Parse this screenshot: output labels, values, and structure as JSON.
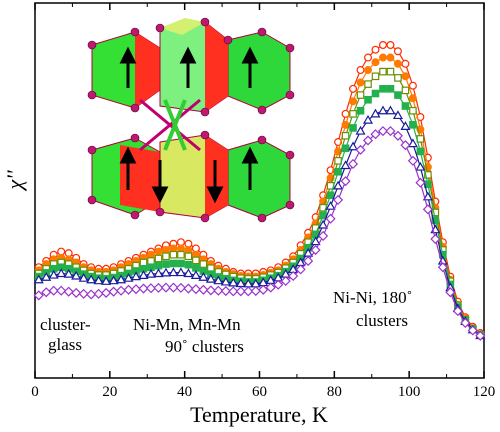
{
  "chart_data": {
    "type": "line",
    "xlabel": "Temperature,  K",
    "ylabel": "χ''",
    "xlim": [
      0,
      120
    ],
    "ylim": [
      0,
      1
    ],
    "x_ticks": [
      "0",
      "20",
      "40",
      "60",
      "80",
      "100",
      "120"
    ],
    "y_ticks_labeled": false,
    "grid": false,
    "legend": "none",
    "annotations": [
      {
        "lines": [
          "cluster-",
          "glass"
        ],
        "at": [
          1,
          0.06
        ]
      },
      {
        "lines": [
          "Ni-Mn, Mn-Mn",
          "90˚ clusters"
        ],
        "at": [
          40,
          0.06
        ]
      },
      {
        "lines": [
          "Ni-Ni, 180˚",
          "clusters"
        ],
        "at": [
          95,
          0.1
        ]
      }
    ],
    "inset": "Crystal structure with octahedral clusters and spin arrows",
    "series": [
      {
        "marker": "open-circle",
        "color": "#ff2a00",
        "x": [
          1,
          3,
          5,
          7,
          9,
          11,
          13,
          15,
          17,
          19,
          21,
          23,
          25,
          27,
          29,
          31,
          33,
          35,
          37,
          39,
          41,
          43,
          45,
          47,
          49,
          51,
          53,
          55,
          57,
          59,
          61,
          63,
          65,
          67,
          69,
          71,
          73,
          75,
          77,
          79,
          81,
          83,
          85,
          87,
          89,
          91,
          93,
          95,
          97,
          99,
          101,
          103,
          105,
          107,
          109,
          111,
          113,
          115,
          117,
          119
        ],
        "y": [
          0.29,
          0.31,
          0.33,
          0.34,
          0.335,
          0.32,
          0.3,
          0.29,
          0.285,
          0.285,
          0.29,
          0.3,
          0.31,
          0.32,
          0.33,
          0.34,
          0.35,
          0.36,
          0.365,
          0.37,
          0.365,
          0.35,
          0.33,
          0.31,
          0.295,
          0.285,
          0.275,
          0.27,
          0.27,
          0.27,
          0.275,
          0.28,
          0.29,
          0.305,
          0.325,
          0.36,
          0.4,
          0.45,
          0.52,
          0.6,
          0.69,
          0.78,
          0.86,
          0.92,
          0.96,
          0.985,
          1.0,
          1.0,
          0.98,
          0.94,
          0.87,
          0.77,
          0.64,
          0.5,
          0.37,
          0.26,
          0.18,
          0.13,
          0.1,
          0.08
        ]
      },
      {
        "marker": "filled-circle",
        "color": "#ff7a00",
        "x": [
          1,
          3,
          5,
          7,
          9,
          11,
          13,
          15,
          17,
          19,
          21,
          23,
          25,
          27,
          29,
          31,
          33,
          35,
          37,
          39,
          41,
          43,
          45,
          47,
          49,
          51,
          53,
          55,
          57,
          59,
          61,
          63,
          65,
          67,
          69,
          71,
          73,
          75,
          77,
          79,
          81,
          83,
          85,
          87,
          89,
          91,
          93,
          95,
          97,
          99,
          101,
          103,
          105,
          107,
          109,
          111,
          113,
          115,
          117,
          119
        ],
        "y": [
          0.28,
          0.3,
          0.315,
          0.32,
          0.315,
          0.305,
          0.29,
          0.28,
          0.275,
          0.275,
          0.28,
          0.29,
          0.3,
          0.31,
          0.32,
          0.33,
          0.34,
          0.345,
          0.35,
          0.35,
          0.345,
          0.33,
          0.315,
          0.3,
          0.285,
          0.275,
          0.268,
          0.262,
          0.26,
          0.26,
          0.265,
          0.272,
          0.28,
          0.295,
          0.315,
          0.345,
          0.385,
          0.43,
          0.5,
          0.575,
          0.66,
          0.745,
          0.82,
          0.88,
          0.92,
          0.945,
          0.96,
          0.96,
          0.94,
          0.9,
          0.83,
          0.73,
          0.61,
          0.48,
          0.355,
          0.25,
          0.17,
          0.125,
          0.095,
          0.075
        ]
      },
      {
        "marker": "open-square",
        "color": "#6b8e00",
        "x": [
          1,
          3,
          5,
          7,
          9,
          11,
          13,
          15,
          17,
          19,
          21,
          23,
          25,
          27,
          29,
          31,
          33,
          35,
          37,
          39,
          41,
          43,
          45,
          47,
          49,
          51,
          53,
          55,
          57,
          59,
          61,
          63,
          65,
          67,
          69,
          71,
          73,
          75,
          77,
          79,
          81,
          83,
          85,
          87,
          89,
          91,
          93,
          95,
          97,
          99,
          101,
          103,
          105,
          107,
          109,
          111,
          113,
          115,
          117,
          119
        ],
        "y": [
          0.27,
          0.285,
          0.3,
          0.305,
          0.3,
          0.29,
          0.28,
          0.27,
          0.265,
          0.265,
          0.27,
          0.278,
          0.285,
          0.295,
          0.305,
          0.31,
          0.318,
          0.325,
          0.33,
          0.33,
          0.325,
          0.312,
          0.3,
          0.287,
          0.275,
          0.267,
          0.26,
          0.255,
          0.253,
          0.253,
          0.258,
          0.265,
          0.273,
          0.287,
          0.305,
          0.333,
          0.37,
          0.415,
          0.48,
          0.55,
          0.63,
          0.71,
          0.78,
          0.84,
          0.875,
          0.9,
          0.915,
          0.915,
          0.895,
          0.855,
          0.79,
          0.7,
          0.585,
          0.465,
          0.345,
          0.245,
          0.168,
          0.122,
          0.093,
          0.074
        ]
      },
      {
        "marker": "filled-square",
        "color": "#22b14c",
        "x": [
          1,
          3,
          5,
          7,
          9,
          11,
          13,
          15,
          17,
          19,
          21,
          23,
          25,
          27,
          29,
          31,
          33,
          35,
          37,
          39,
          41,
          43,
          45,
          47,
          49,
          51,
          53,
          55,
          57,
          59,
          61,
          63,
          65,
          67,
          69,
          71,
          73,
          75,
          77,
          79,
          81,
          83,
          85,
          87,
          89,
          91,
          93,
          95,
          97,
          99,
          101,
          103,
          105,
          107,
          109,
          111,
          113,
          115,
          117,
          119
        ],
        "y": [
          0.26,
          0.272,
          0.285,
          0.29,
          0.285,
          0.277,
          0.268,
          0.26,
          0.255,
          0.253,
          0.257,
          0.263,
          0.27,
          0.278,
          0.285,
          0.29,
          0.295,
          0.3,
          0.302,
          0.302,
          0.298,
          0.288,
          0.278,
          0.268,
          0.259,
          0.253,
          0.248,
          0.245,
          0.243,
          0.243,
          0.248,
          0.255,
          0.263,
          0.276,
          0.293,
          0.318,
          0.352,
          0.395,
          0.455,
          0.52,
          0.595,
          0.67,
          0.735,
          0.79,
          0.825,
          0.845,
          0.86,
          0.86,
          0.84,
          0.805,
          0.745,
          0.66,
          0.555,
          0.44,
          0.33,
          0.235,
          0.163,
          0.12,
          0.092,
          0.073
        ]
      },
      {
        "marker": "open-triangle",
        "color": "#1a1a9c",
        "x": [
          1,
          3,
          5,
          7,
          9,
          11,
          13,
          15,
          17,
          19,
          21,
          23,
          25,
          27,
          29,
          31,
          33,
          35,
          37,
          39,
          41,
          43,
          45,
          47,
          49,
          51,
          53,
          55,
          57,
          59,
          61,
          63,
          65,
          67,
          69,
          71,
          73,
          75,
          77,
          79,
          81,
          83,
          85,
          87,
          89,
          91,
          93,
          95,
          97,
          99,
          101,
          103,
          105,
          107,
          109,
          111,
          113,
          115,
          117,
          119
        ],
        "y": [
          0.25,
          0.258,
          0.265,
          0.27,
          0.268,
          0.262,
          0.255,
          0.25,
          0.247,
          0.245,
          0.247,
          0.25,
          0.255,
          0.26,
          0.264,
          0.268,
          0.27,
          0.272,
          0.273,
          0.273,
          0.27,
          0.264,
          0.258,
          0.252,
          0.247,
          0.243,
          0.24,
          0.238,
          0.237,
          0.237,
          0.241,
          0.248,
          0.256,
          0.268,
          0.283,
          0.305,
          0.335,
          0.372,
          0.425,
          0.485,
          0.55,
          0.615,
          0.675,
          0.725,
          0.76,
          0.78,
          0.79,
          0.79,
          0.775,
          0.74,
          0.685,
          0.61,
          0.515,
          0.41,
          0.31,
          0.225,
          0.158,
          0.117,
          0.09,
          0.072
        ]
      },
      {
        "marker": "open-diamond",
        "color": "#9933cc",
        "x": [
          1,
          3,
          5,
          7,
          9,
          11,
          13,
          15,
          17,
          19,
          21,
          23,
          25,
          27,
          29,
          31,
          33,
          35,
          37,
          39,
          41,
          43,
          45,
          47,
          49,
          51,
          53,
          55,
          57,
          59,
          61,
          63,
          65,
          67,
          69,
          71,
          73,
          75,
          77,
          79,
          81,
          83,
          85,
          87,
          89,
          91,
          93,
          95,
          97,
          99,
          101,
          103,
          105,
          107,
          109,
          111,
          113,
          115,
          117,
          119
        ],
        "y": [
          0.2,
          0.21,
          0.215,
          0.215,
          0.212,
          0.208,
          0.205,
          0.203,
          0.205,
          0.208,
          0.212,
          0.215,
          0.218,
          0.22,
          0.222,
          0.223,
          0.224,
          0.225,
          0.225,
          0.224,
          0.222,
          0.22,
          0.218,
          0.216,
          0.215,
          0.214,
          0.213,
          0.213,
          0.213,
          0.214,
          0.218,
          0.225,
          0.234,
          0.246,
          0.262,
          0.283,
          0.31,
          0.345,
          0.39,
          0.445,
          0.505,
          0.565,
          0.62,
          0.665,
          0.695,
          0.715,
          0.725,
          0.725,
          0.71,
          0.68,
          0.63,
          0.56,
          0.475,
          0.38,
          0.29,
          0.21,
          0.15,
          0.112,
          0.088,
          0.071
        ]
      }
    ]
  }
}
